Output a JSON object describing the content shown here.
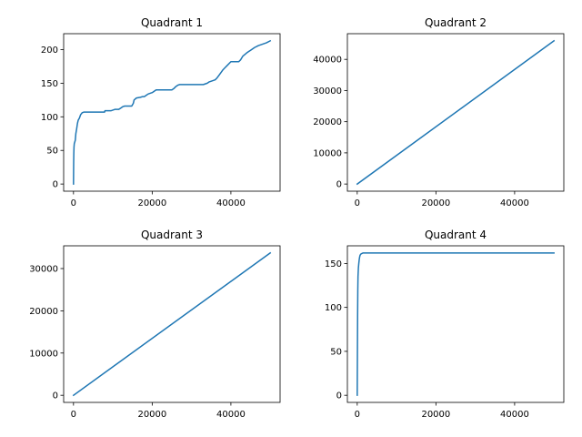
{
  "figure": {
    "background": "#ffffff",
    "line_color": "#1f77b4",
    "axis_color": "#000000"
  },
  "chart_data": [
    {
      "type": "line",
      "title": "Quadrant 1",
      "xlim": [
        -2500,
        52500
      ],
      "ylim": [
        -10.65,
        223.65
      ],
      "xticks": [
        0,
        20000,
        40000
      ],
      "yticks": [
        0,
        50,
        100,
        150,
        200
      ],
      "series": [
        {
          "x": [
            0,
            40,
            80,
            130,
            200,
            300,
            450,
            600,
            800,
            1000,
            1200,
            1500,
            1800,
            2200,
            2600,
            3000,
            3500,
            4000,
            5000,
            6000,
            7000,
            7600,
            7900,
            8000,
            9500,
            10000,
            10500,
            11500,
            12000,
            12500,
            13000,
            14000,
            14800,
            15200,
            15400,
            16000,
            17000,
            17500,
            18000,
            18500,
            19000,
            20000,
            20500,
            21000,
            22000,
            23000,
            24000,
            25000,
            25500,
            26000,
            26500,
            27000,
            28000,
            30000,
            32000,
            33000,
            34000,
            34500,
            35000,
            35500,
            36000,
            36500,
            37000,
            37500,
            38000,
            38500,
            39000,
            40000,
            41000,
            41500,
            42000,
            42500,
            43000,
            44000,
            44500,
            45000,
            46000,
            47000,
            48000,
            49000,
            50000
          ],
          "y": [
            0,
            30,
            45,
            55,
            60,
            62,
            65,
            75,
            82,
            90,
            95,
            98,
            103,
            106,
            107,
            107,
            107,
            107,
            107,
            107,
            107,
            107,
            107,
            109,
            109,
            110,
            111,
            111,
            113,
            115,
            116,
            116,
            116,
            120,
            125,
            128,
            129,
            130,
            130,
            132,
            134,
            136,
            138,
            140,
            140,
            140,
            140,
            140,
            142,
            145,
            147,
            148,
            148,
            148,
            148,
            148,
            150,
            152,
            153,
            154,
            155,
            158,
            162,
            166,
            170,
            173,
            176,
            182,
            182,
            182,
            182,
            185,
            190,
            195,
            197,
            199,
            203,
            206,
            208,
            210,
            213
          ]
        }
      ]
    },
    {
      "type": "line",
      "title": "Quadrant 2",
      "xlim": [
        -2500,
        52500
      ],
      "ylim": [
        -2297,
        48237
      ],
      "xticks": [
        0,
        20000,
        40000
      ],
      "yticks": [
        0,
        10000,
        20000,
        30000,
        40000
      ],
      "series": [
        {
          "x": [
            0,
            50000
          ],
          "y": [
            0,
            45940
          ]
        }
      ]
    },
    {
      "type": "line",
      "title": "Quadrant 3",
      "xlim": [
        -2500,
        52500
      ],
      "ylim": [
        -1685,
        35385
      ],
      "xticks": [
        0,
        20000,
        40000
      ],
      "yticks": [
        0,
        10000,
        20000,
        30000
      ],
      "series": [
        {
          "x": [
            0,
            50000
          ],
          "y": [
            0,
            33700
          ]
        }
      ]
    },
    {
      "type": "line",
      "title": "Quadrant 4",
      "xlim": [
        -2500,
        52500
      ],
      "ylim": [
        -8.1,
        170.1
      ],
      "xticks": [
        0,
        20000,
        40000
      ],
      "yticks": [
        0,
        50,
        100,
        150
      ],
      "series": [
        {
          "x": [
            0,
            50,
            100,
            150,
            200,
            300,
            400,
            500,
            600,
            700,
            800,
            1000,
            1500,
            2000,
            5000,
            10000,
            20000,
            30000,
            40000,
            50000
          ],
          "y": [
            0,
            45,
            90,
            120,
            135,
            145,
            150,
            154,
            157,
            159,
            160,
            161,
            162,
            162,
            162,
            162,
            162,
            162,
            162,
            162
          ]
        }
      ]
    }
  ]
}
